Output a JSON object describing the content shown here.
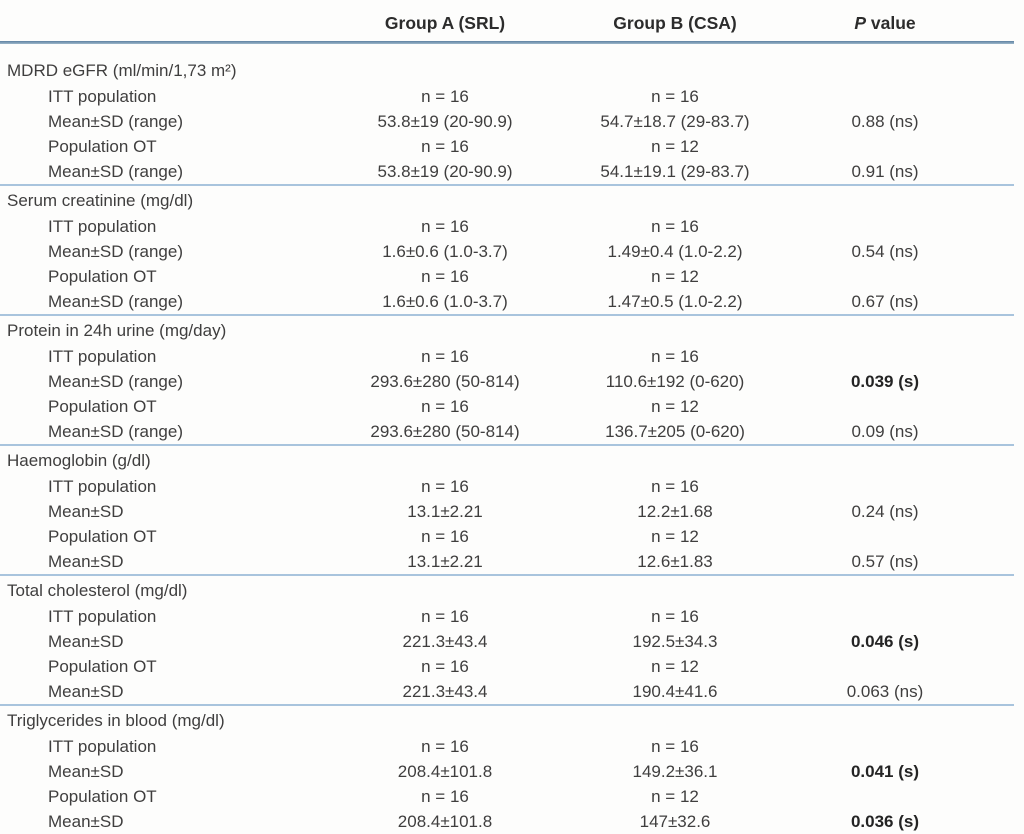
{
  "table": {
    "header": {
      "group_a": "Group A (SRL)",
      "group_b": "Group B (CSA)",
      "p_italic": "P",
      "p_rest": "value"
    },
    "sections": [
      {
        "title": "MDRD eGFR (ml/min/1,73 m²)",
        "rows": [
          {
            "label": "ITT population",
            "a": "n = 16",
            "b": "n = 16",
            "p": "",
            "sig": false
          },
          {
            "label": "Mean±SD (range)",
            "a": "53.8±19 (20-90.9)",
            "b": "54.7±18.7 (29-83.7)",
            "p": "0.88 (ns)",
            "sig": false
          },
          {
            "label": "Population OT",
            "a": "n = 16",
            "b": "n = 12",
            "p": "",
            "sig": false
          },
          {
            "label": "Mean±SD (range)",
            "a": "53.8±19 (20-90.9)",
            "b": "54.1±19.1 (29-83.7)",
            "p": "0.91 (ns)",
            "sig": false
          }
        ]
      },
      {
        "title": "Serum creatinine (mg/dl)",
        "rows": [
          {
            "label": "ITT population",
            "a": "n = 16",
            "b": "n = 16",
            "p": "",
            "sig": false
          },
          {
            "label": "Mean±SD (range)",
            "a": "1.6±0.6 (1.0-3.7)",
            "b": "1.49±0.4 (1.0-2.2)",
            "p": "0.54 (ns)",
            "sig": false
          },
          {
            "label": "Population OT",
            "a": "n = 16",
            "b": "n = 12",
            "p": "",
            "sig": false
          },
          {
            "label": "Mean±SD (range)",
            "a": "1.6±0.6 (1.0-3.7)",
            "b": "1.47±0.5 (1.0-2.2)",
            "p": "0.67 (ns)",
            "sig": false
          }
        ]
      },
      {
        "title": "Protein in 24h urine (mg/day)",
        "rows": [
          {
            "label": "ITT population",
            "a": "n = 16",
            "b": "n = 16",
            "p": "",
            "sig": false
          },
          {
            "label": "Mean±SD (range)",
            "a": "293.6±280 (50-814)",
            "b": "110.6±192 (0-620)",
            "p": "0.039 (s)",
            "sig": true
          },
          {
            "label": "Population OT",
            "a": "n = 16",
            "b": "n = 12",
            "p": "",
            "sig": false
          },
          {
            "label": "Mean±SD (range)",
            "a": "293.6±280 (50-814)",
            "b": "136.7±205 (0-620)",
            "p": "0.09 (ns)",
            "sig": false
          }
        ]
      },
      {
        "title": "Haemoglobin (g/dl)",
        "rows": [
          {
            "label": "ITT population",
            "a": "n = 16",
            "b": "n = 16",
            "p": "",
            "sig": false
          },
          {
            "label": "Mean±SD",
            "a": "13.1±2.21",
            "b": "12.2±1.68",
            "p": "0.24 (ns)",
            "sig": false
          },
          {
            "label": "Population OT",
            "a": "n = 16",
            "b": "n = 12",
            "p": "",
            "sig": false
          },
          {
            "label": "Mean±SD",
            "a": "13.1±2.21",
            "b": "12.6±1.83",
            "p": "0.57 (ns)",
            "sig": false
          }
        ]
      },
      {
        "title": "Total cholesterol (mg/dl)",
        "rows": [
          {
            "label": "ITT population",
            "a": "n = 16",
            "b": "n = 16",
            "p": "",
            "sig": false
          },
          {
            "label": "Mean±SD",
            "a": "221.3±43.4",
            "b": "192.5±34.3",
            "p": "0.046 (s)",
            "sig": true
          },
          {
            "label": "Population OT",
            "a": "n = 16",
            "b": "n = 12",
            "p": "",
            "sig": false
          },
          {
            "label": "Mean±SD",
            "a": "221.3±43.4",
            "b": "190.4±41.6",
            "p": "0.063 (ns)",
            "sig": false
          }
        ]
      },
      {
        "title": "Triglycerides in blood (mg/dl)",
        "rows": [
          {
            "label": "ITT population",
            "a": "n = 16",
            "b": "n = 16",
            "p": "",
            "sig": false
          },
          {
            "label": "Mean±SD",
            "a": "208.4±101.8",
            "b": "149.2±36.1",
            "p": "0.041 (s)",
            "sig": true
          },
          {
            "label": "Population OT",
            "a": "n = 16",
            "b": "n = 12",
            "p": "",
            "sig": false
          },
          {
            "label": "Mean±SD",
            "a": "208.4±101.8",
            "b": "147±32.6",
            "p": "0.036 (s)",
            "sig": true
          }
        ]
      }
    ]
  }
}
